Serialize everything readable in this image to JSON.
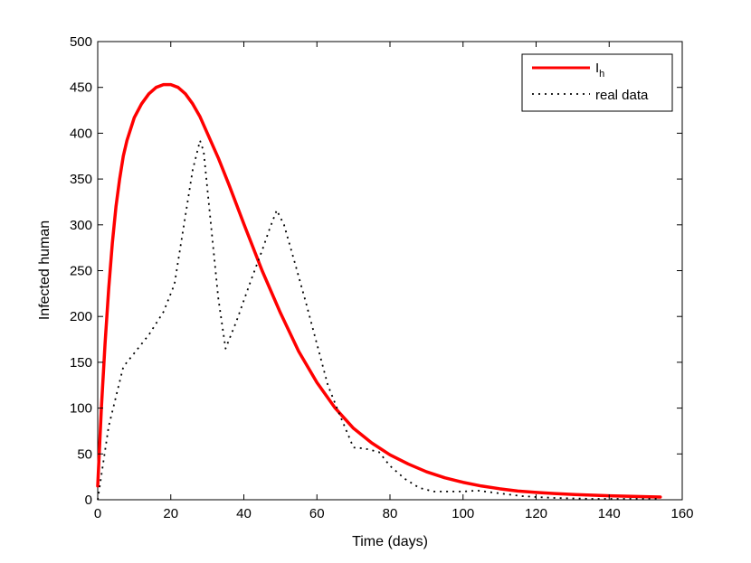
{
  "chart_data": {
    "type": "line",
    "title": "",
    "xlabel": "Time (days)",
    "ylabel": "Infected human",
    "xlim": [
      0,
      160
    ],
    "ylim": [
      0,
      500
    ],
    "xticks": [
      0,
      20,
      40,
      60,
      80,
      100,
      120,
      140,
      160
    ],
    "yticks": [
      0,
      50,
      100,
      150,
      200,
      250,
      300,
      350,
      400,
      450,
      500
    ],
    "xtick_labels": [
      "0",
      "20",
      "40",
      "60",
      "80",
      "100",
      "120",
      "140",
      "160"
    ],
    "ytick_labels": [
      "0",
      "50",
      "100",
      "150",
      "200",
      "250",
      "300",
      "350",
      "400",
      "450",
      "500"
    ],
    "grid": false,
    "legend_position": "top-right",
    "series": [
      {
        "name": "Ih",
        "label_main": "I",
        "label_sub": "h",
        "color": "#ff0000",
        "style": "solid",
        "x": [
          0,
          1,
          2,
          3,
          4,
          5,
          6,
          7,
          8,
          10,
          12,
          14,
          16,
          18,
          20,
          22,
          24,
          26,
          28,
          30,
          33,
          36,
          40,
          45,
          50,
          55,
          60,
          65,
          70,
          75,
          80,
          85,
          90,
          95,
          100,
          105,
          110,
          115,
          120,
          125,
          130,
          135,
          140,
          145,
          150,
          154
        ],
        "y": [
          15,
          100,
          170,
          230,
          280,
          320,
          350,
          375,
          392,
          417,
          432,
          443,
          450,
          453,
          453,
          450,
          443,
          432,
          418,
          400,
          373,
          343,
          301,
          250,
          204,
          162,
          128,
          100,
          78,
          62,
          49,
          39,
          30.5,
          24,
          19,
          15,
          12,
          9.5,
          8,
          6.8,
          5.8,
          5,
          4.3,
          3.8,
          3.3,
          3
        ]
      },
      {
        "name": "real data",
        "color": "#000000",
        "style": "dotted",
        "x": [
          0,
          3,
          7,
          10,
          14,
          18,
          21,
          24,
          26,
          28,
          29,
          31,
          33,
          35,
          38,
          42,
          45,
          47,
          49,
          51,
          54,
          57,
          60,
          63,
          66,
          70,
          73,
          77,
          80,
          84,
          88,
          92,
          96,
          100,
          104,
          108,
          112,
          116,
          120,
          125,
          130,
          135,
          140,
          145,
          150,
          154
        ],
        "y": [
          0,
          80,
          145,
          160,
          180,
          205,
          235,
          310,
          360,
          392,
          380,
          300,
          220,
          165,
          195,
          240,
          272,
          295,
          316,
          300,
          258,
          215,
          170,
          125,
          95,
          57,
          56,
          52,
          37,
          23,
          13,
          9,
          9,
          9,
          10,
          8,
          6,
          4,
          3,
          2,
          1.5,
          1,
          1,
          1,
          1,
          1
        ]
      }
    ]
  }
}
